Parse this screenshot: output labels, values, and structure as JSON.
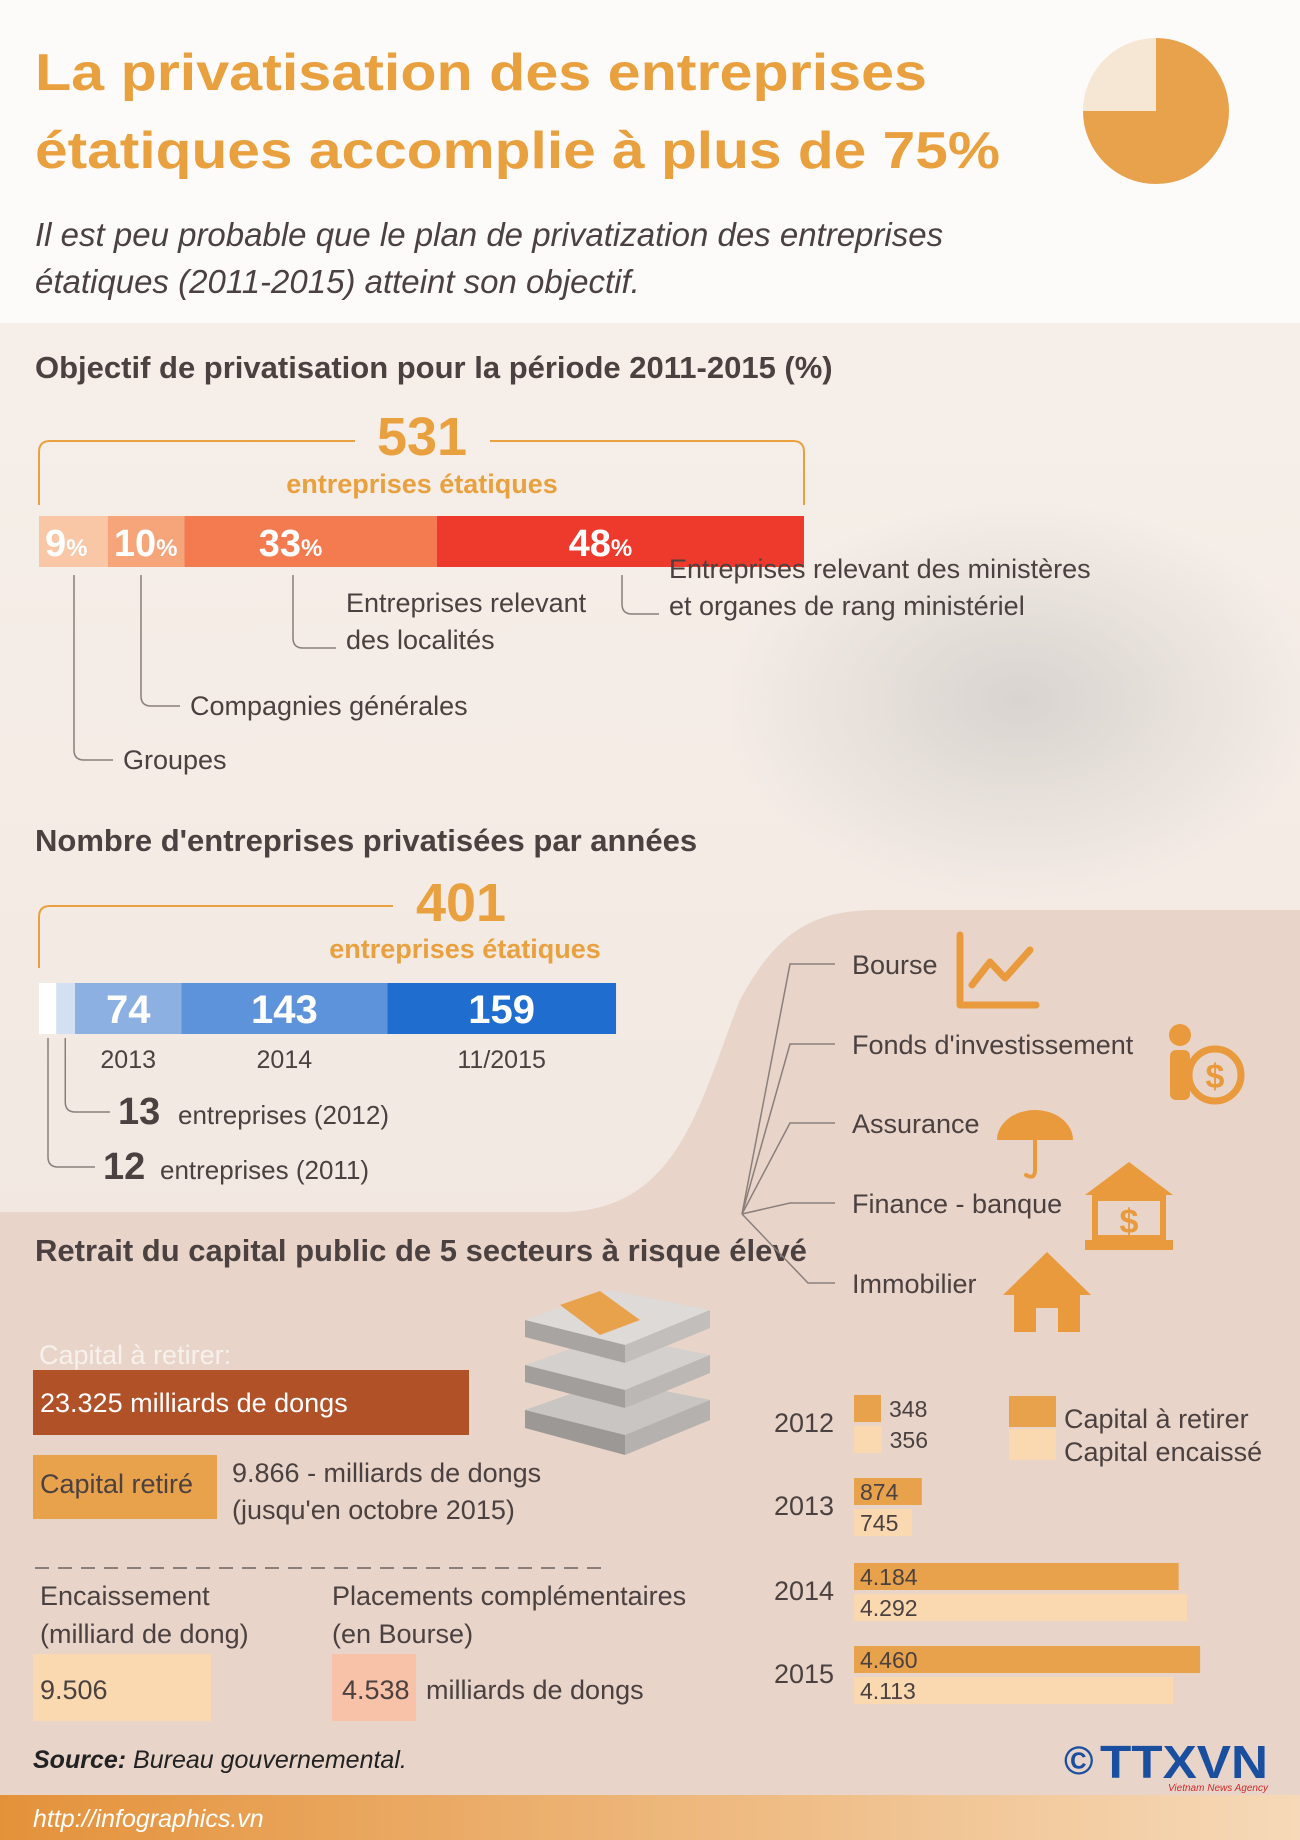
{
  "header": {
    "title": [
      "La privatisation des entreprises",
      "étatiques accomplie à plus de 75%"
    ],
    "subtitle": [
      "Il est peu probable que le plan de privatization des entreprises",
      "étatiques (2011-2015) atteint son objectif."
    ]
  },
  "target": {
    "heading": "Objectif de privatisation pour la période 2011-2015 (%)",
    "total": 531,
    "total_label": "entreprises étatiques",
    "unit": "%",
    "segments": [
      {
        "value": 9,
        "color": "#f9c6a6",
        "label": [
          "Groupes"
        ]
      },
      {
        "value": 10,
        "color": "#f6a47a",
        "label": [
          "Compagnies générales"
        ]
      },
      {
        "value": 33,
        "color": "#f47a50",
        "label": [
          "Entreprises relevant",
          "des localités"
        ]
      },
      {
        "value": 48,
        "color": "#ee3a2c",
        "label": [
          "Entreprises relevant des ministères",
          "et organes de rang ministériel"
        ]
      }
    ]
  },
  "yearly": {
    "heading": "Nombre d'entreprises privatisées par années",
    "total": 401,
    "total_label": "entreprises étatiques",
    "segments": [
      {
        "value": 12,
        "color": "#ffffff",
        "count_label": "entreprises (2011)"
      },
      {
        "value": 13,
        "color": "#d3e0f3",
        "count_label": "entreprises (2012)"
      },
      {
        "value": 74,
        "color": "#8db0e2",
        "period": "2013"
      },
      {
        "value": 143,
        "color": "#5d93db",
        "period": "2014"
      },
      {
        "value": 159,
        "color": "#1f6ecf",
        "period": "11/2015"
      }
    ]
  },
  "withdrawal": {
    "heading": "Retrait du capital public de 5 secteurs à risque élevé",
    "sectors": [
      "Bourse",
      "Fonds d'investissement",
      "Assurance",
      "Finance - banque",
      "Immobilier"
    ],
    "capital_to_withdraw": {
      "label": "Capital à retirer:",
      "amount": "23.325 milliards de dongs"
    },
    "capital_withdrawn": {
      "label": "Capital retiré",
      "amount": [
        "9.866 - milliards de dongs",
        "(jusqu'en octobre 2015)"
      ]
    },
    "collection": {
      "label": [
        "Encaissement",
        "(milliard de dong)"
      ],
      "value": "9.506"
    },
    "placements": {
      "label": [
        "Placements complémentaires",
        "(en Bourse)"
      ],
      "value": "4.538",
      "unit": "milliards de dongs"
    }
  },
  "chart_data": {
    "type": "bar",
    "orientation": "horizontal",
    "categories": [
      "2012",
      "2013",
      "2014",
      "2015"
    ],
    "series": [
      {
        "name": "Capital à retirer",
        "color": "#e9a24c",
        "values": [
          348,
          874,
          4184,
          4460
        ],
        "value_labels": [
          "348",
          "874",
          "4.184",
          "4.460"
        ]
      },
      {
        "name": "Capital encaissé",
        "color": "#fbd9b0",
        "values": [
          356,
          745,
          4292,
          4113
        ],
        "value_labels": [
          "356",
          "745",
          "4.292",
          "4.113"
        ]
      }
    ]
  },
  "source": {
    "label": "Source:",
    "text": "Bureau gouvernemental."
  },
  "url": "http://infographics.vn",
  "logo": {
    "symbol": "©",
    "name": "TTXVN",
    "tagline": "Vietnam News Agency"
  }
}
